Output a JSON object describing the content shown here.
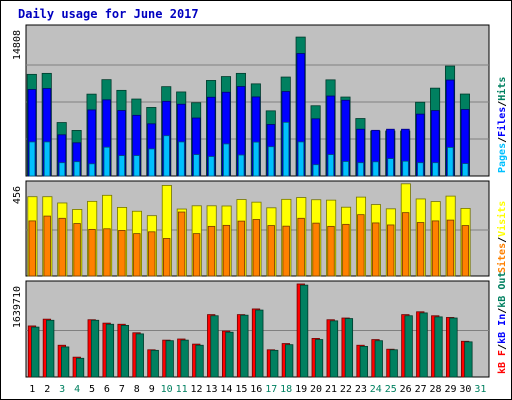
{
  "chart_data": {
    "type": "bar",
    "title": "Daily usage for June 2017",
    "categories": [
      "1",
      "2",
      "3",
      "4",
      "5",
      "6",
      "7",
      "8",
      "9",
      "10",
      "11",
      "12",
      "13",
      "14",
      "15",
      "16",
      "17",
      "18",
      "19",
      "20",
      "21",
      "22",
      "23",
      "24",
      "25",
      "26",
      "27",
      "28",
      "29",
      "30",
      "31"
    ],
    "weekend_days": [
      "3",
      "4",
      "10",
      "11",
      "17",
      "18",
      "24",
      "25",
      "31"
    ],
    "panels": [
      {
        "id": "hits",
        "ymax_label": "14808",
        "ylim": [
          0,
          14808
        ],
        "right_labels": [
          {
            "text": "Pages",
            "color": "#00c0ff"
          },
          {
            "text": "/",
            "color": "#000000"
          },
          {
            "text": "Files",
            "color": "#0000ff"
          },
          {
            "text": "/",
            "color": "#000000"
          },
          {
            "text": "Hits",
            "color": "#008060"
          }
        ],
        "series": [
          {
            "name": "Hits",
            "color": "#008060",
            "values": [
              10170,
              10270,
              5350,
              4560,
              8190,
              9640,
              8570,
              7700,
              6860,
              8940,
              8410,
              7330,
              9560,
              9950,
              10270,
              9220,
              6520,
              9900,
              13900,
              7030,
              9620,
              7900,
              5750,
              4500,
              4500,
              4500,
              7380,
              8790,
              11000,
              8200,
              null
            ]
          },
          {
            "name": "Files",
            "color": "#0000ff",
            "values": [
              8650,
              8750,
              4120,
              3320,
              6610,
              7620,
              6550,
              6070,
              5220,
              7470,
              7180,
              5800,
              7880,
              8380,
              8950,
              7910,
              5150,
              8450,
              12250,
              5720,
              8000,
              7580,
              4680,
              4570,
              4680,
              4680,
              6190,
              6540,
              9600,
              6650,
              null
            ]
          },
          {
            "name": "Pages",
            "color": "#00c0ff",
            "values": [
              3410,
              3410,
              1330,
              1430,
              1220,
              2880,
              2040,
              2040,
              2710,
              4030,
              3410,
              2140,
              1950,
              3210,
              2100,
              3390,
              2930,
              5370,
              3410,
              1130,
              2140,
              1450,
              1330,
              1420,
              1740,
              1480,
              1330,
              1330,
              2860,
              1240,
              null
            ]
          }
        ]
      },
      {
        "id": "visits",
        "ymax_label": "456",
        "ylim": [
          0,
          456
        ],
        "right_labels": [
          {
            "text": "Sites",
            "color": "#ff8000"
          },
          {
            "text": "/",
            "color": "#000000"
          },
          {
            "text": "Visits",
            "color": "#ffff00"
          }
        ],
        "series": [
          {
            "name": "Visits",
            "color": "#ffff00",
            "values": [
              393,
              393,
              362,
              330,
              370,
              400,
              340,
              321,
              299,
              449,
              332,
              348,
              348,
              347,
              379,
              366,
              338,
              380,
              389,
              378,
              376,
              341,
              391,
              354,
              333,
              457,
              382,
              369,
              396,
              335,
              null
            ]
          },
          {
            "name": "Sites",
            "color": "#ff8000",
            "values": [
              273,
              297,
              286,
              260,
              231,
              234,
              226,
              210,
              219,
              186,
              317,
              210,
              246,
              251,
              272,
              280,
              250,
              247,
              286,
              262,
              246,
              256,
              304,
              263,
              253,
              314,
              265,
              273,
              277,
              250,
              null
            ]
          }
        ]
      },
      {
        "id": "kbytes",
        "ymax_label": "1639710",
        "ylim": [
          0,
          1639710
        ],
        "right_labels": [
          {
            "text": "kB F",
            "color": "#ff0000"
          },
          {
            "text": "/",
            "color": "#000000"
          },
          {
            "text": "kB In",
            "color": "#0000ff"
          },
          {
            "text": "/",
            "color": "#000000"
          },
          {
            "text": "kB Out",
            "color": "#008060"
          }
        ],
        "series": [
          {
            "name": "kB F",
            "color": "#ff0000",
            "values": [
              900000,
              1020000,
              560000,
              350000,
              1010000,
              950000,
              930000,
              780000,
              480000,
              650000,
              670000,
              580000,
              1100000,
              810000,
              1100000,
              1200000,
              480000,
              590000,
              1640000,
              680000,
              1010000,
              1040000,
              560000,
              660000,
              490000,
              1100000,
              1150000,
              1080000,
              1050000,
              630000,
              null
            ]
          },
          {
            "name": "kB Out",
            "color": "#008060",
            "values": [
              880000,
              1000000,
              530000,
              330000,
              1000000,
              930000,
              910000,
              760000,
              470000,
              640000,
              650000,
              560000,
              1080000,
              790000,
              1090000,
              1180000,
              470000,
              570000,
              1620000,
              660000,
              990000,
              1030000,
              540000,
              640000,
              480000,
              1080000,
              1130000,
              1060000,
              1040000,
              620000,
              null
            ]
          }
        ]
      }
    ]
  }
}
